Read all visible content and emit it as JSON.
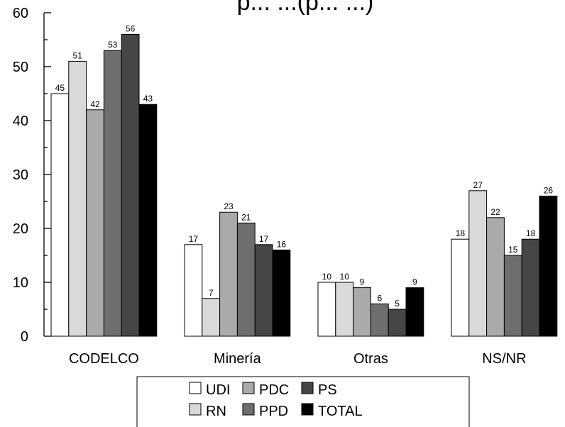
{
  "chart_data": {
    "type": "bar",
    "title": "p... ...(p... ...)",
    "xlabel": "",
    "ylabel": "",
    "ylim": [
      0,
      60
    ],
    "yticks": [
      0,
      10,
      20,
      30,
      40,
      50,
      60
    ],
    "grid": false,
    "legend_position": "bottom",
    "categories": [
      "CODELCO",
      "Minería",
      "Otras",
      "NS/NR"
    ],
    "series": [
      {
        "name": "UDI",
        "color": "#ffffff",
        "values": [
          45,
          17,
          10,
          18
        ]
      },
      {
        "name": "RN",
        "color": "#d9d9d9",
        "values": [
          51,
          7,
          10,
          27
        ]
      },
      {
        "name": "PDC",
        "color": "#aaaaaa",
        "values": [
          42,
          23,
          9,
          22
        ]
      },
      {
        "name": "PPD",
        "color": "#6e6e6e",
        "values": [
          53,
          21,
          6,
          15
        ]
      },
      {
        "name": "PS",
        "color": "#464646",
        "values": [
          56,
          17,
          5,
          18
        ]
      },
      {
        "name": "TOTAL",
        "color": "#000000",
        "values": [
          43,
          16,
          9,
          26
        ]
      }
    ]
  }
}
